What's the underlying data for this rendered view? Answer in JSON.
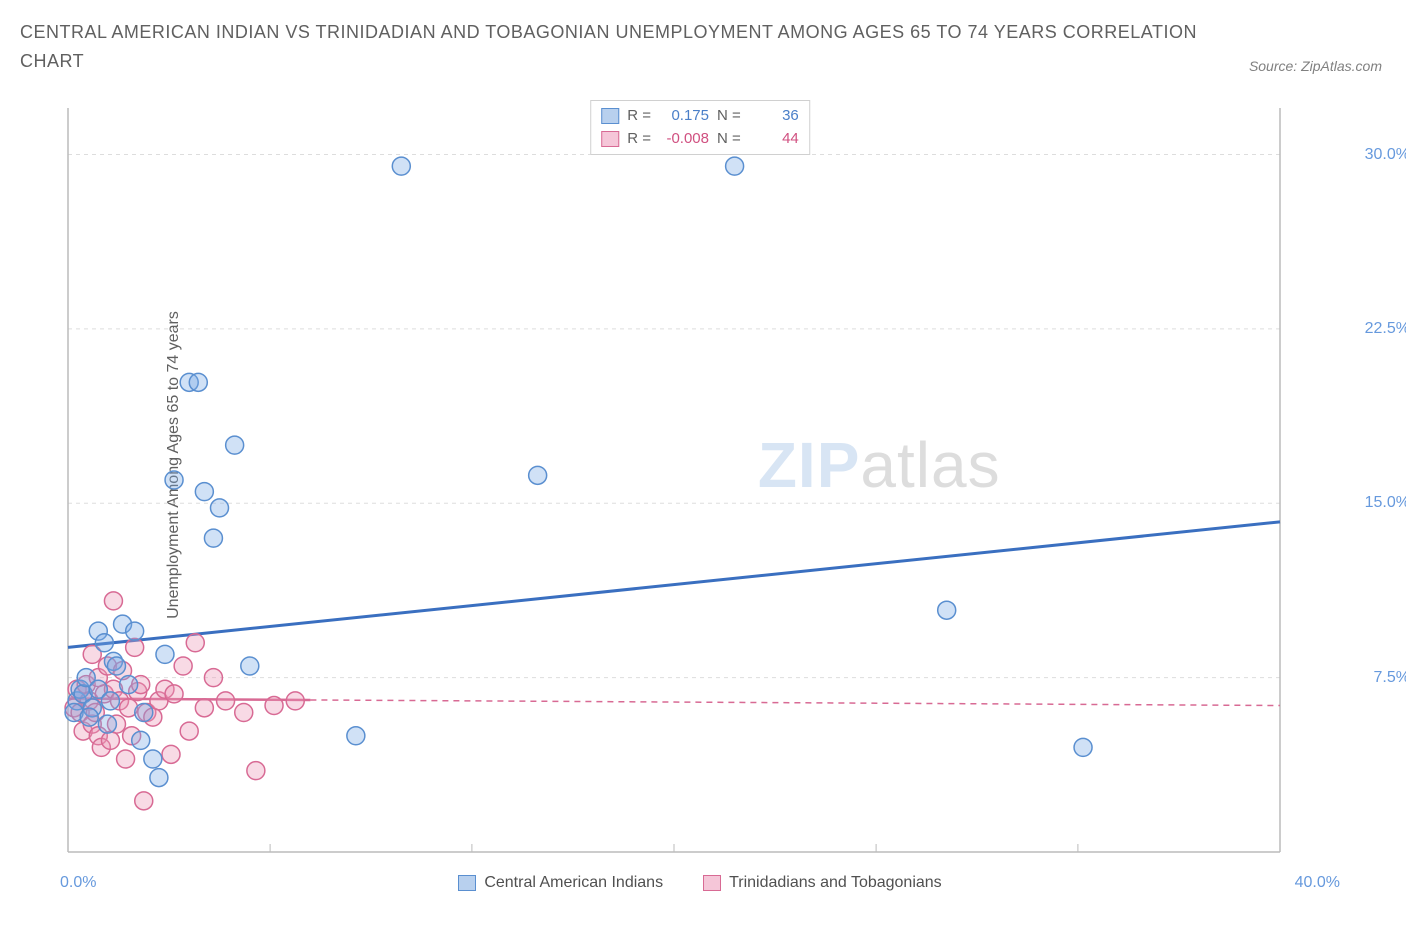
{
  "title": "CENTRAL AMERICAN INDIAN VS TRINIDADIAN AND TOBAGONIAN UNEMPLOYMENT AMONG AGES 65 TO 74 YEARS CORRELATION CHART",
  "source": "Source: ZipAtlas.com",
  "ylabel": "Unemployment Among Ages 65 to 74 years",
  "watermark_zip": "ZIP",
  "watermark_atlas": "atlas",
  "chart": {
    "type": "scatter",
    "xlim": [
      0,
      40
    ],
    "ylim": [
      0,
      32
    ],
    "x_ticks": [
      0,
      40
    ],
    "x_tick_labels": [
      "0.0%",
      "40.0%"
    ],
    "y_ticks": [
      7.5,
      15.0,
      22.5,
      30.0
    ],
    "y_tick_labels": [
      "7.5%",
      "15.0%",
      "22.5%",
      "30.0%"
    ],
    "y_tick_color": "#6699dd",
    "x_tick_left_color": "#6699dd",
    "x_tick_right_color": "#6699dd",
    "grid_y": [
      7.5,
      15.0,
      22.5,
      30.0
    ],
    "grid_x_minor": [
      6.67,
      13.33,
      20,
      26.67,
      33.33
    ],
    "grid_color": "#dddddd",
    "axis_color": "#bbbbbb",
    "background_color": "#ffffff",
    "marker_radius": 9,
    "marker_stroke_width": 1.5,
    "series": [
      {
        "name": "Central American Indians",
        "color_fill": "rgba(120,170,230,0.35)",
        "color_stroke": "#5a8fd0",
        "swatch_fill": "#b8d0ee",
        "swatch_stroke": "#5a8fd0",
        "R_label": "R =",
        "R_value": "0.175",
        "N_label": "N =",
        "N_value": "36",
        "value_color": "#4a7fc8",
        "trend": {
          "x1": 0,
          "y1": 8.8,
          "x2": 40,
          "y2": 14.2,
          "color": "#3a6fc0",
          "width": 3,
          "dash": ""
        },
        "points": [
          [
            0.3,
            6.5
          ],
          [
            0.4,
            7.0
          ],
          [
            0.5,
            6.8
          ],
          [
            0.6,
            7.5
          ],
          [
            0.8,
            6.2
          ],
          [
            1.0,
            7.0
          ],
          [
            1.0,
            9.5
          ],
          [
            1.2,
            9.0
          ],
          [
            1.3,
            5.5
          ],
          [
            1.5,
            8.2
          ],
          [
            1.6,
            8.0
          ],
          [
            1.8,
            9.8
          ],
          [
            2.0,
            7.2
          ],
          [
            2.2,
            9.5
          ],
          [
            2.5,
            6.0
          ],
          [
            2.8,
            4.0
          ],
          [
            3.0,
            3.2
          ],
          [
            3.2,
            8.5
          ],
          [
            3.5,
            16.0
          ],
          [
            4.0,
            20.2
          ],
          [
            4.3,
            20.2
          ],
          [
            4.5,
            15.5
          ],
          [
            4.8,
            13.5
          ],
          [
            5.0,
            14.8
          ],
          [
            5.5,
            17.5
          ],
          [
            6.0,
            8.0
          ],
          [
            9.5,
            5.0
          ],
          [
            11.0,
            29.5
          ],
          [
            15.5,
            16.2
          ],
          [
            22.0,
            29.5
          ],
          [
            29.0,
            10.4
          ],
          [
            33.5,
            4.5
          ],
          [
            0.2,
            6.0
          ],
          [
            0.7,
            5.8
          ],
          [
            1.4,
            6.5
          ],
          [
            2.4,
            4.8
          ]
        ]
      },
      {
        "name": "Trinidadians and Tobagonians",
        "color_fill": "rgba(235,150,180,0.35)",
        "color_stroke": "#d86a94",
        "swatch_fill": "#f5c6d8",
        "swatch_stroke": "#d86a94",
        "R_label": "R =",
        "R_value": "-0.008",
        "N_label": "N =",
        "N_value": "44",
        "value_color": "#d05080",
        "trend": {
          "x1": 0,
          "y1": 6.6,
          "x2": 40,
          "y2": 6.3,
          "color": "#d86a94",
          "width": 1.5,
          "dash": "6,5"
        },
        "trend_solid_to_x": 8,
        "points": [
          [
            0.2,
            6.2
          ],
          [
            0.3,
            7.0
          ],
          [
            0.4,
            6.0
          ],
          [
            0.5,
            6.8
          ],
          [
            0.5,
            5.2
          ],
          [
            0.6,
            7.2
          ],
          [
            0.7,
            6.5
          ],
          [
            0.8,
            5.5
          ],
          [
            0.8,
            8.5
          ],
          [
            0.9,
            6.0
          ],
          [
            1.0,
            5.0
          ],
          [
            1.0,
            7.5
          ],
          [
            1.1,
            4.5
          ],
          [
            1.2,
            6.8
          ],
          [
            1.3,
            8.0
          ],
          [
            1.4,
            4.8
          ],
          [
            1.5,
            7.0
          ],
          [
            1.5,
            10.8
          ],
          [
            1.6,
            5.5
          ],
          [
            1.7,
            6.5
          ],
          [
            1.8,
            7.8
          ],
          [
            1.9,
            4.0
          ],
          [
            2.0,
            6.2
          ],
          [
            2.1,
            5.0
          ],
          [
            2.2,
            8.8
          ],
          [
            2.3,
            6.9
          ],
          [
            2.4,
            7.2
          ],
          [
            2.5,
            2.2
          ],
          [
            2.6,
            6.0
          ],
          [
            2.8,
            5.8
          ],
          [
            3.0,
            6.5
          ],
          [
            3.2,
            7.0
          ],
          [
            3.4,
            4.2
          ],
          [
            3.5,
            6.8
          ],
          [
            3.8,
            8.0
          ],
          [
            4.0,
            5.2
          ],
          [
            4.2,
            9.0
          ],
          [
            4.5,
            6.2
          ],
          [
            4.8,
            7.5
          ],
          [
            5.2,
            6.5
          ],
          [
            5.8,
            6.0
          ],
          [
            6.2,
            3.5
          ],
          [
            6.8,
            6.3
          ],
          [
            7.5,
            6.5
          ]
        ]
      }
    ]
  },
  "legend_bottom": [
    {
      "label": "Central American Indians"
    },
    {
      "label": "Trinidadians and Tobagonians"
    }
  ]
}
